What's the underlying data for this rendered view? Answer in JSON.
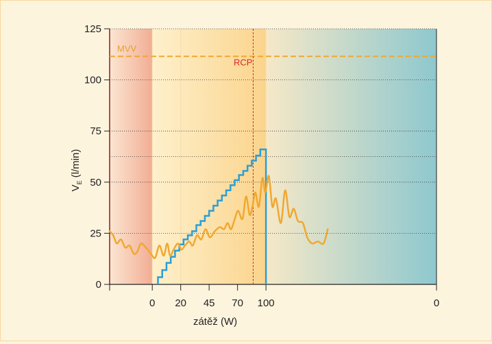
{
  "colors": {
    "ve_line": "#f0a830",
    "load_line": "#2a9fd6",
    "mvv_line": "#f0a830",
    "rcp_line": "#d9252a",
    "axis": "#222222",
    "zone_warmup": "#f4b097",
    "zone_exercise": "#fde7b8",
    "zone_recovery": "#8fc9cf"
  },
  "chart_data": {
    "type": "line",
    "xlabel": "zátěž (W)",
    "ylabel": "V",
    "ylabel_sub": "E",
    "ylabel_unit": " (l/min)",
    "ylim": [
      0,
      125
    ],
    "xlim": [
      -3,
      20
    ],
    "y_ticks": [
      {
        "value": 0,
        "label": "0"
      },
      {
        "value": 25,
        "label": "25"
      },
      {
        "value": 50,
        "label": "50"
      },
      {
        "value": 75,
        "label": "75"
      },
      {
        "value": 100,
        "label": "100"
      },
      {
        "value": 125,
        "label": "125"
      }
    ],
    "x_ticks": [
      {
        "value": -3,
        "label": ""
      },
      {
        "value": 0,
        "label": "0"
      },
      {
        "value": 2,
        "label": "20"
      },
      {
        "value": 4,
        "label": "45"
      },
      {
        "value": 6,
        "label": "70"
      },
      {
        "value": 8,
        "label": "100"
      },
      {
        "value": 20,
        "label": "0"
      }
    ],
    "gridlines_y": [
      25,
      50,
      62.5,
      75,
      100,
      125
    ],
    "zones": [
      {
        "from": -3,
        "to": 0,
        "name": "warm-up"
      },
      {
        "from": 0,
        "to": 8,
        "name": "exercise"
      },
      {
        "from": 8,
        "to": 20,
        "name": "recovery"
      }
    ],
    "mvv": {
      "label": "MVV",
      "value": 111.5
    },
    "rcp": {
      "label": "RCP",
      "x": 7.1
    },
    "series": [
      {
        "id": "ve",
        "x": [
          -3,
          -2.75,
          -2.5,
          -2.2,
          -1.9,
          -1.6,
          -1.3,
          -1.05,
          -0.8,
          -0.45,
          -0.1,
          0.2,
          0.5,
          0.8,
          1.05,
          1.25,
          1.5,
          1.8,
          2.05,
          2.3,
          2.6,
          2.85,
          3.15,
          3.45,
          3.75,
          4.05,
          4.4,
          4.75,
          5.05,
          5.3,
          5.55,
          5.85,
          6.05,
          6.35,
          6.6,
          6.85,
          7.05,
          7.25,
          7.5,
          7.75,
          7.95,
          8.2,
          8.45,
          8.7,
          9.05,
          9.35,
          9.65,
          9.95,
          10.25,
          10.6,
          10.9,
          11.25,
          11.65,
          12.05,
          12.35
        ],
        "values": [
          26,
          24,
          20,
          22,
          18,
          19,
          15,
          16,
          20,
          18,
          15,
          13,
          19,
          14,
          20,
          14,
          17,
          20,
          17,
          19,
          21,
          19,
          24,
          22,
          27,
          23,
          26,
          28,
          27,
          30,
          27,
          33,
          36,
          32,
          43,
          34,
          38,
          45,
          38,
          52,
          45,
          53,
          38,
          42,
          30,
          46,
          33,
          37,
          31,
          30,
          23,
          20,
          21,
          20,
          27
        ]
      },
      {
        "id": "load",
        "steps": [
          0.4,
          0.7,
          1.0,
          1.3,
          1.6,
          1.9,
          2.2,
          2.5,
          2.8,
          3.1,
          3.4,
          3.7,
          4.0,
          4.3,
          4.6,
          4.9,
          5.2,
          5.5,
          5.8,
          6.1,
          6.4,
          6.7,
          7.0,
          7.3,
          7.6,
          7.85
        ],
        "values": [
          3.5,
          7,
          10.5,
          13.5,
          16.5,
          19.5,
          22,
          24,
          26,
          29,
          31,
          33.5,
          36,
          38.5,
          41,
          43.5,
          46,
          48.5,
          51,
          53.5,
          55.5,
          58,
          60.5,
          63,
          66
        ],
        "end_x": 8,
        "end_value": 66
      }
    ]
  }
}
